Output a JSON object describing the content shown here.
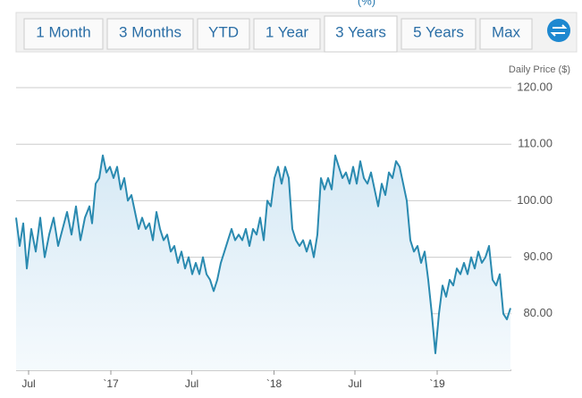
{
  "header_note": "(%)",
  "buttons": [
    "1 Month",
    "3 Months",
    "YTD",
    "1 Year",
    "3 Years",
    "5 Years",
    "Max"
  ],
  "active_button": "3 Years",
  "chart_data": {
    "type": "line",
    "y_axis_label": "Daily Price ($)",
    "x": [
      -28,
      -20,
      -12,
      -4,
      6,
      16,
      26,
      36,
      46,
      56,
      66,
      76,
      86,
      96,
      106,
      116,
      126,
      136,
      142,
      150,
      158,
      166,
      174,
      182,
      190,
      198,
      206,
      214,
      222,
      230,
      238,
      246,
      254,
      262,
      270,
      278,
      286,
      294,
      302,
      310,
      318,
      326,
      334,
      342,
      350,
      358,
      366,
      374,
      382,
      390,
      398,
      406,
      414,
      422,
      430,
      438,
      446,
      454,
      462,
      470,
      478,
      486,
      494,
      502,
      510,
      518,
      526,
      534,
      542,
      550,
      558,
      566,
      574,
      582,
      590,
      598,
      606,
      614,
      622,
      630,
      638,
      646,
      654,
      662,
      670,
      678,
      686,
      694,
      702,
      710,
      718,
      726,
      734,
      742,
      750,
      758,
      766,
      774,
      782,
      790,
      798,
      806,
      814,
      822,
      830,
      838,
      846,
      854,
      862,
      870,
      878,
      886,
      894,
      902,
      910,
      918,
      926,
      934,
      942,
      950,
      958,
      966,
      974,
      982,
      990,
      998,
      1006,
      1014,
      1022,
      1030,
      1038,
      1046,
      1054,
      1062,
      1070,
      1078
    ],
    "series": [
      {
        "name": "Daily Price",
        "color": "#2a8ab0",
        "values": [
          97,
          92,
          96,
          88,
          95,
          91,
          97,
          90,
          94,
          97,
          92,
          95,
          98,
          94,
          99,
          93,
          97,
          99,
          96,
          103,
          104,
          108,
          105,
          106,
          104,
          106,
          102,
          104,
          100,
          101,
          98,
          95,
          97,
          95,
          96,
          93,
          98,
          95,
          93,
          94,
          91,
          92,
          89,
          91,
          88,
          90,
          87,
          89,
          87,
          90,
          87,
          86,
          84,
          86,
          89,
          91,
          93,
          95,
          93,
          94,
          93,
          95,
          92,
          95,
          94,
          97,
          93,
          100,
          99,
          104,
          106,
          103,
          106,
          104,
          95,
          93,
          92,
          93,
          91,
          93,
          90,
          94,
          104,
          102,
          104,
          102,
          108,
          106,
          104,
          105,
          103,
          106,
          103,
          107,
          104,
          103,
          105,
          102,
          99,
          103,
          101,
          105,
          104,
          107,
          106,
          103,
          100,
          93,
          91,
          92,
          89,
          91,
          86,
          80,
          73,
          80,
          85,
          83,
          86,
          85,
          88,
          87,
          89,
          87,
          90,
          88,
          91,
          89,
          90,
          92,
          86,
          85,
          87,
          80,
          79,
          81
        ]
      }
    ],
    "xlim": [
      -28,
      1080
    ],
    "xticks": [
      {
        "value": 0,
        "label": "Jul"
      },
      {
        "value": 184,
        "label": "`17"
      },
      {
        "value": 365,
        "label": "Jul"
      },
      {
        "value": 549,
        "label": "`18"
      },
      {
        "value": 730,
        "label": "Jul"
      },
      {
        "value": 914,
        "label": "`19"
      }
    ],
    "ylim": [
      70,
      120
    ],
    "yticks": [
      {
        "value": 80,
        "label": "80.00"
      },
      {
        "value": 90,
        "label": "90.00"
      },
      {
        "value": 100,
        "label": "100.00"
      },
      {
        "value": 110,
        "label": "110.00"
      },
      {
        "value": 120,
        "label": "120.00"
      }
    ],
    "grid": true
  }
}
